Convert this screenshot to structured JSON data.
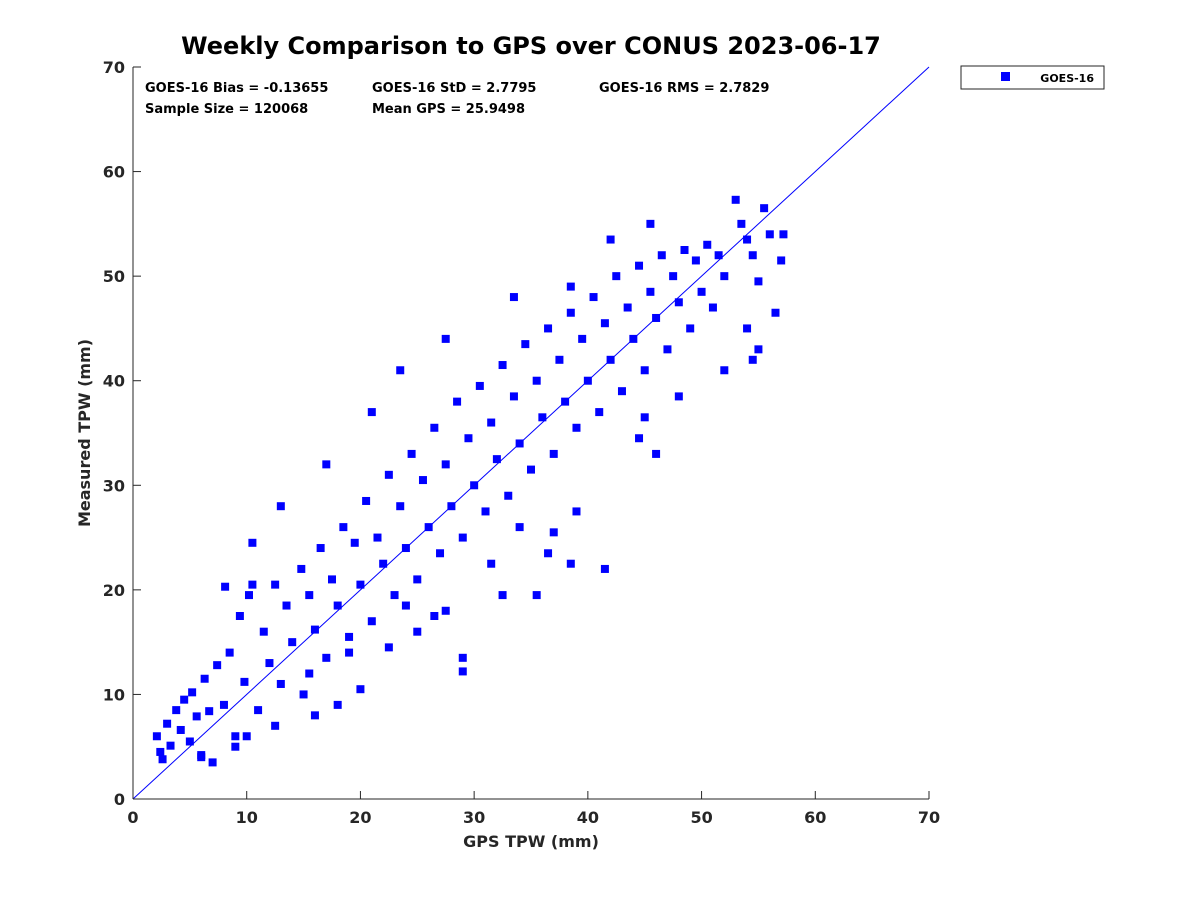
{
  "chart_data": {
    "type": "scatter",
    "title": "Weekly Comparison to GPS over CONUS 2023-06-17",
    "xlabel": "GPS TPW (mm)",
    "ylabel": "Measured TPW (mm)",
    "xlim": [
      0,
      70
    ],
    "ylim": [
      0,
      70
    ],
    "xticks": [
      "0",
      "10",
      "20",
      "30",
      "40",
      "50",
      "60",
      "70"
    ],
    "yticks": [
      "0",
      "10",
      "20",
      "30",
      "40",
      "50",
      "60",
      "70"
    ],
    "grid": false,
    "legend_position": "outside-top-right",
    "reference_line": {
      "name": "1:1 line",
      "x": [
        0,
        70
      ],
      "y": [
        0,
        70
      ],
      "color": "#0000ff"
    },
    "stats": {
      "bias": "GOES-16 Bias = -0.13655",
      "std": "GOES-16 StD = 2.7795",
      "rms": "GOES-16 RMS = 2.7829",
      "sample_size": "Sample Size = 120068",
      "mean_gps": "Mean GPS = 25.9498"
    },
    "series": [
      {
        "name": "GOES-16",
        "color": "#0000ff",
        "marker": "square",
        "points": [
          [
            2.1,
            6.0
          ],
          [
            2.4,
            4.5
          ],
          [
            2.6,
            3.8
          ],
          [
            3.0,
            7.2
          ],
          [
            3.3,
            5.1
          ],
          [
            3.8,
            8.5
          ],
          [
            4.2,
            6.6
          ],
          [
            4.5,
            9.5
          ],
          [
            5.0,
            5.5
          ],
          [
            5.2,
            10.2
          ],
          [
            5.6,
            7.9
          ],
          [
            6.0,
            4.2
          ],
          [
            6.3,
            11.5
          ],
          [
            6.7,
            8.4
          ],
          [
            7.0,
            3.5
          ],
          [
            7.4,
            12.8
          ],
          [
            8.0,
            9.0
          ],
          [
            8.1,
            20.3
          ],
          [
            8.5,
            14.0
          ],
          [
            9.0,
            6.0
          ],
          [
            9.4,
            17.5
          ],
          [
            9.8,
            11.2
          ],
          [
            10.2,
            19.5
          ],
          [
            10.5,
            20.5
          ],
          [
            11.0,
            8.5
          ],
          [
            11.5,
            16.0
          ],
          [
            12.0,
            13.0
          ],
          [
            12.5,
            20.5
          ],
          [
            13.0,
            11.0
          ],
          [
            13.5,
            18.5
          ],
          [
            14.0,
            15.0
          ],
          [
            14.8,
            22.0
          ],
          [
            15.0,
            10.0
          ],
          [
            15.5,
            19.5
          ],
          [
            16.0,
            16.2
          ],
          [
            16.5,
            24.0
          ],
          [
            17.0,
            13.5
          ],
          [
            17.5,
            21.0
          ],
          [
            18.0,
            18.5
          ],
          [
            18.5,
            26.0
          ],
          [
            19.0,
            15.5
          ],
          [
            19.5,
            24.5
          ],
          [
            20.0,
            20.5
          ],
          [
            20.5,
            28.5
          ],
          [
            21.0,
            17.0
          ],
          [
            21.5,
            25.0
          ],
          [
            22.0,
            22.5
          ],
          [
            22.5,
            31.0
          ],
          [
            23.0,
            19.5
          ],
          [
            23.5,
            28.0
          ],
          [
            24.0,
            24.0
          ],
          [
            24.5,
            33.0
          ],
          [
            25.0,
            21.0
          ],
          [
            25.5,
            30.5
          ],
          [
            26.0,
            26.0
          ],
          [
            26.5,
            35.5
          ],
          [
            27.0,
            23.5
          ],
          [
            27.5,
            32.0
          ],
          [
            28.0,
            28.0
          ],
          [
            28.5,
            38.0
          ],
          [
            29.0,
            25.0
          ],
          [
            29.5,
            34.5
          ],
          [
            30.0,
            30.0
          ],
          [
            30.5,
            39.5
          ],
          [
            31.0,
            27.5
          ],
          [
            31.5,
            36.0
          ],
          [
            32.0,
            32.5
          ],
          [
            32.5,
            41.5
          ],
          [
            33.0,
            29.0
          ],
          [
            33.5,
            38.5
          ],
          [
            34.0,
            34.0
          ],
          [
            34.5,
            43.5
          ],
          [
            35.0,
            31.5
          ],
          [
            35.5,
            40.0
          ],
          [
            36.0,
            36.5
          ],
          [
            36.5,
            45.0
          ],
          [
            37.0,
            33.0
          ],
          [
            37.5,
            42.0
          ],
          [
            38.0,
            38.0
          ],
          [
            38.5,
            46.5
          ],
          [
            39.0,
            35.5
          ],
          [
            39.5,
            44.0
          ],
          [
            40.0,
            40.0
          ],
          [
            40.5,
            48.0
          ],
          [
            41.0,
            37.0
          ],
          [
            41.5,
            45.5
          ],
          [
            42.0,
            42.0
          ],
          [
            42.5,
            50.0
          ],
          [
            43.0,
            39.0
          ],
          [
            43.5,
            47.0
          ],
          [
            44.0,
            44.0
          ],
          [
            44.5,
            51.0
          ],
          [
            45.0,
            41.0
          ],
          [
            45.5,
            48.5
          ],
          [
            46.0,
            46.0
          ],
          [
            46.5,
            52.0
          ],
          [
            47.0,
            43.0
          ],
          [
            47.5,
            50.0
          ],
          [
            48.0,
            47.5
          ],
          [
            48.5,
            52.5
          ],
          [
            49.0,
            45.0
          ],
          [
            49.5,
            51.5
          ],
          [
            50.0,
            48.5
          ],
          [
            50.5,
            53.0
          ],
          [
            51.0,
            47.0
          ],
          [
            51.5,
            52.0
          ],
          [
            52.0,
            50.0
          ],
          [
            53.0,
            57.3
          ],
          [
            53.5,
            55.0
          ],
          [
            54.0,
            53.5
          ],
          [
            54.5,
            52.0
          ],
          [
            55.0,
            49.5
          ],
          [
            55.5,
            56.5
          ],
          [
            56.0,
            54.0
          ],
          [
            56.5,
            46.5
          ],
          [
            57.0,
            51.5
          ],
          [
            57.2,
            54.0
          ],
          [
            45.5,
            55.0
          ],
          [
            42.0,
            53.5
          ],
          [
            38.5,
            49.0
          ],
          [
            33.5,
            48.0
          ],
          [
            27.5,
            44.0
          ],
          [
            23.5,
            41.0
          ],
          [
            21.0,
            37.0
          ],
          [
            17.0,
            32.0
          ],
          [
            13.0,
            28.0
          ],
          [
            10.5,
            24.5
          ],
          [
            44.5,
            34.5
          ],
          [
            46.0,
            33.0
          ],
          [
            48.0,
            38.5
          ],
          [
            52.0,
            41.0
          ],
          [
            41.5,
            22.0
          ],
          [
            38.5,
            22.5
          ],
          [
            36.5,
            23.5
          ],
          [
            35.5,
            19.5
          ],
          [
            32.5,
            19.5
          ],
          [
            29.0,
            12.2
          ],
          [
            29.0,
            13.5
          ],
          [
            26.5,
            17.5
          ],
          [
            25.0,
            16.0
          ],
          [
            22.5,
            14.5
          ],
          [
            20.0,
            10.5
          ],
          [
            18.0,
            9.0
          ],
          [
            16.0,
            8.0
          ],
          [
            12.5,
            7.0
          ],
          [
            10.0,
            6.0
          ],
          [
            9.0,
            5.0
          ],
          [
            6.0,
            4.0
          ],
          [
            54.5,
            42.0
          ],
          [
            55.0,
            43.0
          ],
          [
            54.0,
            45.0
          ],
          [
            45.0,
            36.5
          ],
          [
            37.0,
            25.5
          ],
          [
            39.0,
            27.5
          ],
          [
            34.0,
            26.0
          ],
          [
            31.5,
            22.5
          ],
          [
            27.5,
            18.0
          ],
          [
            24.0,
            18.5
          ],
          [
            19.0,
            14.0
          ],
          [
            15.5,
            12.0
          ]
        ]
      }
    ]
  }
}
